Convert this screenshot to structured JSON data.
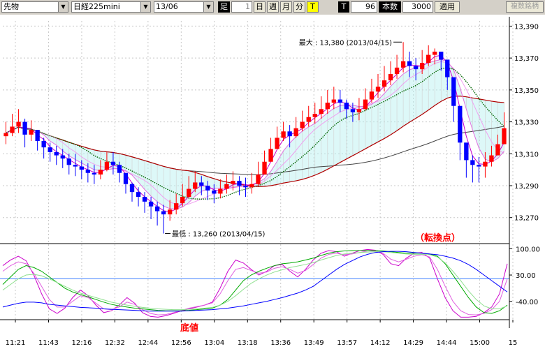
{
  "toolbar": {
    "product": "先物",
    "contract": "日経225mini",
    "month": "13/06",
    "ashi_label": "足",
    "step_value": "1",
    "period_buttons": [
      "日",
      "週",
      "月",
      "分"
    ],
    "t_button": "T",
    "t_label": "T",
    "count_value": "96",
    "count_label": "本数",
    "bars_value": "3000",
    "apply_label": "適用",
    "multi_label": "複数銘柄"
  },
  "chart_data": [
    {
      "type": "candlestick",
      "title": "",
      "xlabel": "",
      "ylabel": "",
      "ylim": [
        13255,
        13395
      ],
      "y_ticks": [
        "13,390",
        "13,370",
        "13,350",
        "13,330",
        "13,310",
        "13,290",
        "13,270"
      ],
      "x_ticks": [
        "11:21",
        "11:43",
        "12:16",
        "12:32",
        "12:44",
        "12:56",
        "13:04",
        "13:18",
        "13:36",
        "13:49",
        "13:57",
        "14:12",
        "14:29",
        "14:44",
        "15:00",
        "15"
      ],
      "grid": true,
      "colors": {
        "up": "#ff0000",
        "down": "#0000ff",
        "ma_short": "#cc00cc",
        "ma_green": "#006600",
        "ma_long1": "#b00000",
        "ma_long2": "#444444",
        "band_fill": "#b4f0f0"
      },
      "close": [
        13323,
        13327,
        13330,
        13322,
        13325,
        13318,
        13314,
        13311,
        13309,
        13307,
        13303,
        13302,
        13300,
        13298,
        13297,
        13300,
        13305,
        13303,
        13298,
        13291,
        13286,
        13283,
        13280,
        13277,
        13274,
        13272,
        13275,
        13279,
        13283,
        13288,
        13292,
        13290,
        13287,
        13285,
        13288,
        13291,
        13293,
        13290,
        13289,
        13291,
        13297,
        13305,
        13313,
        13320,
        13324,
        13321,
        13326,
        13330,
        13333,
        13335,
        13338,
        13342,
        13344,
        13342,
        13338,
        13336,
        13338,
        13344,
        13349,
        13352,
        13356,
        13360,
        13364,
        13368,
        13365,
        13363,
        13367,
        13372,
        13374,
        13369,
        13358,
        13340,
        13317,
        13306,
        13303,
        13302,
        13305,
        13309,
        13316,
        13326
      ],
      "high": [
        13330,
        13335,
        13338,
        13332,
        13331,
        13325,
        13320,
        13317,
        13315,
        13313,
        13310,
        13310,
        13306,
        13304,
        13303,
        13306,
        13311,
        13311,
        13305,
        13296,
        13292,
        13289,
        13286,
        13283,
        13280,
        13278,
        13281,
        13285,
        13291,
        13296,
        13299,
        13296,
        13293,
        13291,
        13294,
        13297,
        13299,
        13296,
        13295,
        13298,
        13305,
        13312,
        13320,
        13327,
        13330,
        13328,
        13333,
        13337,
        13340,
        13342,
        13346,
        13350,
        13352,
        13350,
        13344,
        13342,
        13345,
        13351,
        13357,
        13360,
        13365,
        13368,
        13372,
        13380,
        13374,
        13370,
        13375,
        13378,
        13376,
        13372,
        13362,
        13346,
        13323,
        13312,
        13309,
        13308,
        13311,
        13315,
        13322,
        13336
      ],
      "low": [
        13316,
        13321,
        13323,
        13314,
        13318,
        13312,
        13307,
        13305,
        13303,
        13301,
        13297,
        13296,
        13294,
        13292,
        13291,
        13294,
        13299,
        13297,
        13292,
        13285,
        13280,
        13277,
        13273,
        13269,
        13265,
        13260,
        13268,
        13272,
        13277,
        13282,
        13286,
        13284,
        13281,
        13279,
        13282,
        13285,
        13287,
        13284,
        13283,
        13285,
        13290,
        13298,
        13306,
        13313,
        13318,
        13314,
        13320,
        13324,
        13327,
        13329,
        13332,
        13335,
        13338,
        13336,
        13332,
        13330,
        13331,
        13337,
        13342,
        13345,
        13349,
        13353,
        13357,
        13361,
        13358,
        13356,
        13360,
        13365,
        13366,
        13362,
        13350,
        13330,
        13306,
        13295,
        13292,
        13292,
        13295,
        13302,
        13309,
        13318
      ],
      "annotations": [
        {
          "text": "最大 : 13,380 (2013/04/15)",
          "index": 63,
          "y": 13380
        },
        {
          "text": "最低 : 13,260 (2013/04/15)",
          "index": 25,
          "y": 13260
        }
      ]
    },
    {
      "type": "line",
      "title": "",
      "ylim": [
        -85,
        108
      ],
      "y_ticks": [
        "100.00",
        "30.00",
        "-40.00"
      ],
      "reference_line": 20,
      "series": [
        {
          "color": "#cc00cc",
          "values": [
            55,
            70,
            80,
            68,
            30,
            -20,
            -60,
            -72,
            -58,
            -30,
            -10,
            -25,
            -50,
            -70,
            -65,
            -50,
            -30,
            -45,
            -70,
            -80,
            -82,
            -78,
            -72,
            -65,
            -60,
            -55,
            -50,
            -42,
            -5,
            40,
            70,
            62,
            45,
            30,
            40,
            55,
            58,
            40,
            25,
            45,
            70,
            88,
            95,
            92,
            80,
            88,
            95,
            98,
            96,
            85,
            60,
            55,
            75,
            88,
            90,
            75,
            20,
            -30,
            -65,
            -82,
            -82,
            -80,
            -70,
            -55,
            -20,
            60
          ]
        },
        {
          "color": "#e060e0",
          "values": [
            40,
            55,
            65,
            60,
            35,
            0,
            -35,
            -55,
            -55,
            -40,
            -25,
            -30,
            -45,
            -60,
            -62,
            -55,
            -42,
            -48,
            -62,
            -72,
            -76,
            -75,
            -70,
            -64,
            -58,
            -54,
            -50,
            -44,
            -20,
            15,
            45,
            50,
            42,
            35,
            38,
            48,
            52,
            45,
            35,
            42,
            58,
            75,
            85,
            88,
            84,
            86,
            90,
            94,
            94,
            88,
            72,
            65,
            72,
            80,
            84,
            78,
            45,
            0,
            -40,
            -65,
            -75,
            -76,
            -72,
            -62,
            -40,
            20
          ]
        },
        {
          "color": "#00aa00",
          "values": [
            5,
            25,
            45,
            55,
            50,
            40,
            25,
            10,
            -5,
            -15,
            -22,
            -28,
            -35,
            -42,
            -48,
            -52,
            -55,
            -58,
            -60,
            -62,
            -64,
            -65,
            -65,
            -65,
            -64,
            -62,
            -60,
            -58,
            -50,
            -35,
            -10,
            15,
            30,
            40,
            48,
            55,
            60,
            62,
            65,
            70,
            75,
            82,
            88,
            92,
            94,
            95,
            95,
            95,
            95,
            94,
            92,
            90,
            88,
            88,
            88,
            86,
            80,
            60,
            30,
            0,
            -30,
            -55,
            -70,
            -72,
            -65,
            -50
          ]
        },
        {
          "color": "#90e090",
          "values": [
            -10,
            5,
            20,
            30,
            32,
            28,
            20,
            10,
            0,
            -10,
            -18,
            -24,
            -30,
            -36,
            -42,
            -46,
            -50,
            -53,
            -56,
            -58,
            -60,
            -61,
            -62,
            -62,
            -61,
            -60,
            -58,
            -56,
            -50,
            -40,
            -25,
            -8,
            8,
            20,
            30,
            38,
            44,
            50,
            54,
            58,
            63,
            70,
            76,
            82,
            86,
            88,
            90,
            91,
            92,
            92,
            90,
            88,
            86,
            85,
            85,
            84,
            78,
            62,
            40,
            15,
            -12,
            -35,
            -52,
            -60,
            -60,
            -52
          ]
        },
        {
          "color": "#0000ff",
          "values": [
            -55,
            -50,
            -45,
            -42,
            -42,
            -44,
            -48,
            -50,
            -52,
            -54,
            -56,
            -57,
            -58,
            -60,
            -61,
            -62,
            -63,
            -64,
            -65,
            -66,
            -66,
            -66,
            -66,
            -66,
            -65,
            -64,
            -63,
            -62,
            -60,
            -58,
            -55,
            -52,
            -48,
            -44,
            -40,
            -35,
            -30,
            -24,
            -18,
            -10,
            0,
            15,
            30,
            45,
            58,
            68,
            78,
            85,
            90,
            92,
            93,
            93,
            92,
            90,
            88,
            86,
            84,
            80,
            75,
            68,
            58,
            45,
            30,
            15,
            0,
            -15
          ]
        }
      ]
    }
  ],
  "label_bottom": "底値",
  "label_turn": "（転換点）"
}
